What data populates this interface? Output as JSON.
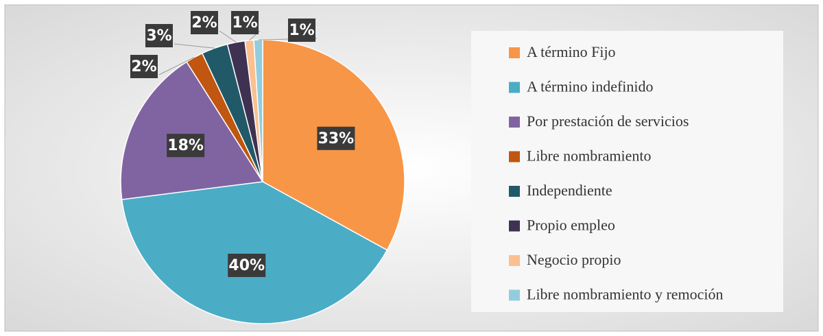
{
  "chart_data": {
    "type": "pie",
    "categories": [
      "A término Fijo",
      "A término indefinido",
      "Por prestación de servicios",
      "Libre nombramiento",
      "Independiente",
      "Propio empleo",
      "Negocio propio",
      "Libre nombramiento y remoción"
    ],
    "values": [
      33,
      40,
      18,
      2,
      3,
      2,
      1,
      1
    ],
    "value_labels": [
      "33%",
      "40%",
      "18%",
      "2%",
      "3%",
      "2%",
      "1%",
      "1%"
    ],
    "colors": [
      "#f79646",
      "#4bacc6",
      "#8064a2",
      "#c0560f",
      "#215968",
      "#3f3151",
      "#fac090",
      "#93cddd"
    ],
    "legend": "right"
  }
}
